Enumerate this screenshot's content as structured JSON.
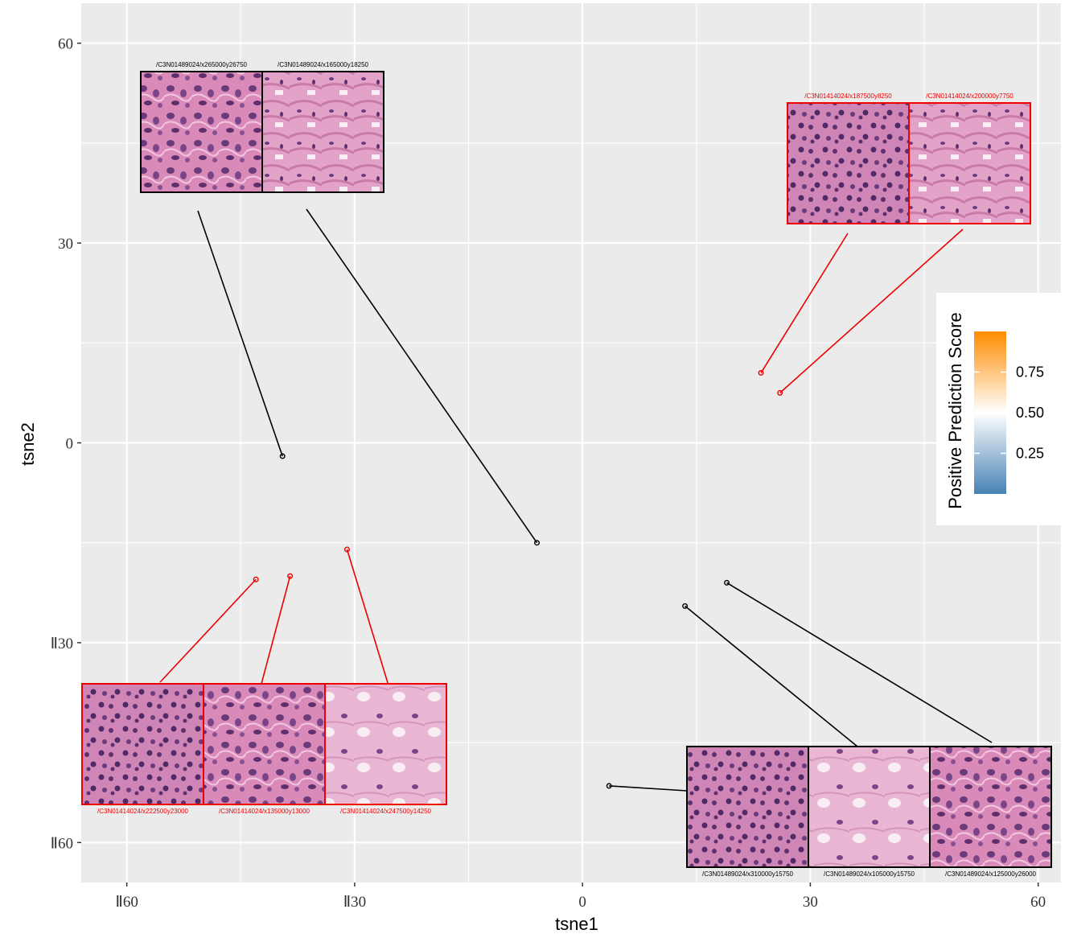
{
  "chart_data": {
    "type": "scatter",
    "xlabel": "tsne1",
    "ylabel": "tsne2",
    "xlim": [
      -66,
      63
    ],
    "ylim": [
      -66,
      66
    ],
    "x_ticks": [
      -60,
      -30,
      0,
      30,
      60
    ],
    "y_ticks": [
      60,
      30,
      0,
      -30,
      -60
    ],
    "x_tick_labels": [
      "Ⅱ60",
      "Ⅱ30",
      "0",
      "30",
      "60"
    ],
    "y_tick_labels": [
      "60",
      "30",
      "0",
      "Ⅱ30",
      "Ⅱ60"
    ],
    "grid": true,
    "background": "#ebebeb",
    "colors": {
      "positive": "#ee0000",
      "negative": "#000000",
      "grid": "#ffffff"
    },
    "points": [
      {
        "x": -39.5,
        "y": -2,
        "group": "black"
      },
      {
        "x": -6,
        "y": -15,
        "group": "black"
      },
      {
        "x": 3.5,
        "y": -51.5,
        "group": "black"
      },
      {
        "x": 13.5,
        "y": -24.5,
        "group": "black"
      },
      {
        "x": 19.0,
        "y": -21.0,
        "group": "black"
      },
      {
        "x": 23.5,
        "y": 10.5,
        "group": "red"
      },
      {
        "x": 26.0,
        "y": 7.5,
        "group": "red"
      },
      {
        "x": -43.0,
        "y": -20.5,
        "group": "red"
      },
      {
        "x": -38.5,
        "y": -20.0,
        "group": "red"
      },
      {
        "x": -31.0,
        "y": -16.0,
        "group": "red"
      }
    ],
    "tiles": [
      {
        "label": "/C3N01489024/x265000y26750",
        "group": "black",
        "position": "top-left",
        "order": 0
      },
      {
        "label": "/C3N01489024/x165000y18250",
        "group": "black",
        "position": "top-left",
        "order": 1
      },
      {
        "label": "/C3N01414024/x187500y8250",
        "group": "red",
        "position": "top-right",
        "order": 0
      },
      {
        "label": "/C3N01414024/x200000y7750",
        "group": "red",
        "position": "top-right",
        "order": 1
      },
      {
        "label": "/C3N01414024/x222500y23000",
        "group": "red",
        "position": "bottom-left",
        "order": 0
      },
      {
        "label": "/C3N01414024/x135000y13000",
        "group": "red",
        "position": "bottom-left",
        "order": 1
      },
      {
        "label": "/C3N01414024/x247500y14250",
        "group": "red",
        "position": "bottom-left",
        "order": 2
      },
      {
        "label": "/C3N01489024/x310000y15750",
        "group": "black",
        "position": "bottom-right",
        "order": 0
      },
      {
        "label": "/C3N01489024/x105000y15750",
        "group": "black",
        "position": "bottom-right",
        "order": 1
      },
      {
        "label": "/C3N01489024/x125000y26000",
        "group": "black",
        "position": "bottom-right",
        "order": 2
      }
    ],
    "legend": {
      "title": "Positive Prediction Score",
      "placement": "right",
      "ticks": [
        0.75,
        0.5,
        0.25
      ],
      "tick_labels": [
        "0.75",
        "0.50",
        "0.25"
      ],
      "range": [
        0,
        1
      ],
      "gradient": [
        "#4682b4",
        "#ffffff",
        "#ff8c00"
      ]
    }
  }
}
